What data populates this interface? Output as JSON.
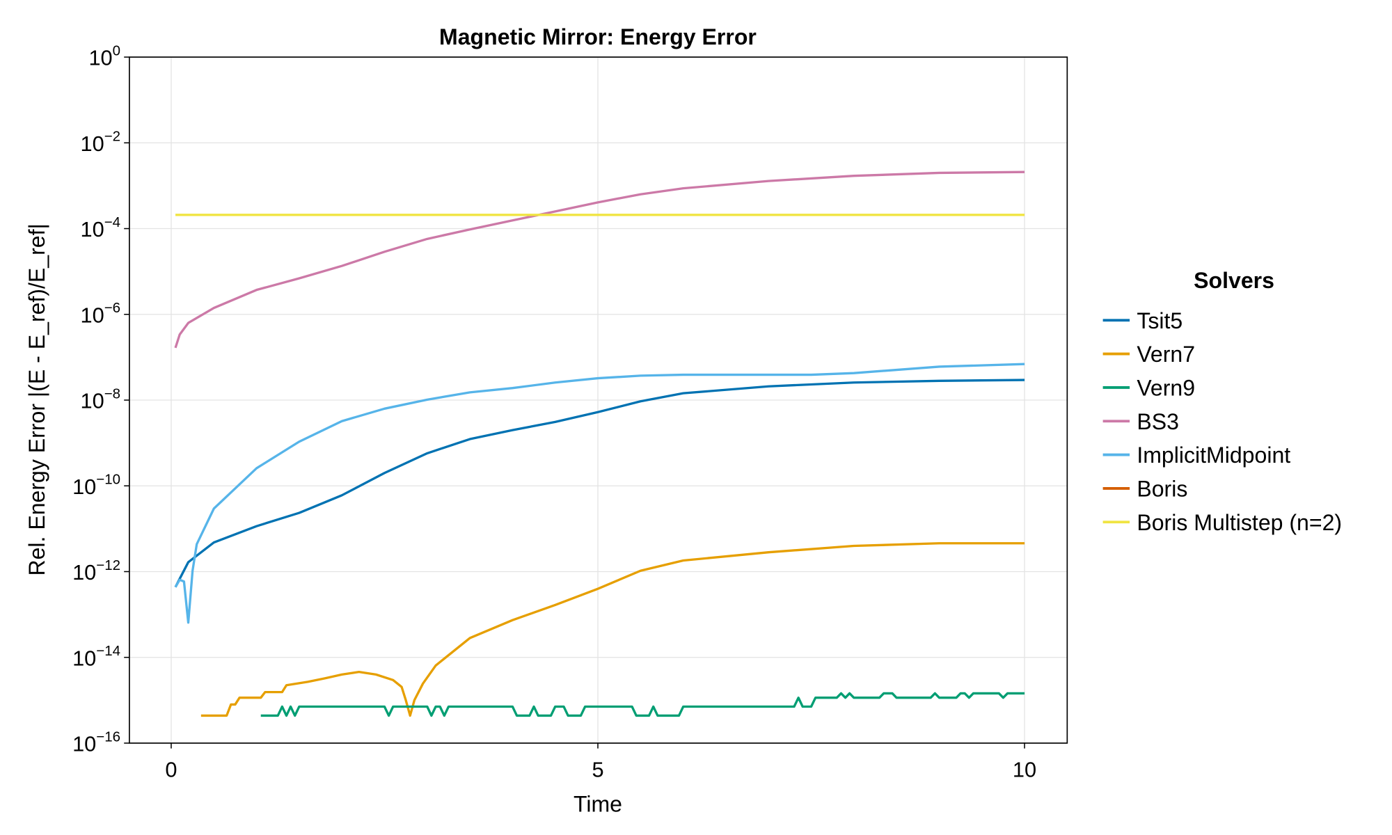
{
  "chart_data": {
    "type": "line",
    "title": "Magnetic Mirror: Energy Error",
    "xlabel": "Time",
    "ylabel": "Rel. Energy Error |(E - E_ref)/E_ref|",
    "yscale": "log10",
    "xlim": [
      -0.49,
      10.5
    ],
    "ylim_log10": [
      -16,
      0
    ],
    "xticks": [
      0,
      5,
      10
    ],
    "xtick_labels": [
      "0",
      "5",
      "10"
    ],
    "ytick_exponents": [
      0,
      -2,
      -4,
      -6,
      -8,
      -10,
      -12,
      -14,
      -16
    ],
    "ytick_base": "10",
    "grid": true,
    "legend": {
      "title": "Solvers",
      "placement": "right"
    },
    "series": [
      {
        "name": "Tsit5",
        "color": "#0072b2",
        "x": [
          0.05,
          0.2,
          0.5,
          1,
          1.5,
          2,
          2.5,
          3,
          3.5,
          4,
          4.5,
          5,
          5.5,
          6,
          7,
          8,
          9,
          10
        ],
        "log10_y": [
          -12.36,
          -11.78,
          -11.32,
          -10.94,
          -10.63,
          -10.22,
          -9.7,
          -9.24,
          -8.91,
          -8.7,
          -8.51,
          -8.28,
          -8.03,
          -7.84,
          -7.68,
          -7.59,
          -7.55,
          -7.53
        ]
      },
      {
        "name": "Vern7",
        "color": "#e69f00",
        "x": [
          0.35,
          0.65,
          0.7,
          0.75,
          0.8,
          1.05,
          1.1,
          1.3,
          1.35,
          1.6,
          1.8,
          2.0,
          2.2,
          2.4,
          2.6,
          2.7,
          2.75,
          2.8,
          2.85,
          2.95,
          3.1,
          3.5,
          4,
          4.5,
          5,
          5.5,
          6,
          7,
          8,
          9,
          10
        ],
        "log10_y": [
          -15.36,
          -15.36,
          -15.1,
          -15.1,
          -14.94,
          -14.94,
          -14.81,
          -14.81,
          -14.65,
          -14.57,
          -14.49,
          -14.4,
          -14.34,
          -14.4,
          -14.53,
          -14.69,
          -15.0,
          -15.36,
          -15.0,
          -14.61,
          -14.19,
          -13.55,
          -13.13,
          -12.78,
          -12.4,
          -11.98,
          -11.74,
          -11.55,
          -11.4,
          -11.34,
          -11.34
        ]
      },
      {
        "name": "Vern9",
        "color": "#009e73",
        "x": [
          1.05,
          1.25,
          1.3,
          1.35,
          1.4,
          1.45,
          1.5,
          2.5,
          2.55,
          2.6,
          3.0,
          3.05,
          3.1,
          3.15,
          3.2,
          3.25,
          4.0,
          4.05,
          4.2,
          4.25,
          4.3,
          4.45,
          4.5,
          4.6,
          4.65,
          4.8,
          4.85,
          5.4,
          5.45,
          5.6,
          5.65,
          5.7,
          5.95,
          6.0,
          7.3,
          7.35,
          7.4,
          7.5,
          7.55,
          7.8,
          7.85,
          7.9,
          7.95,
          8.0,
          8.3,
          8.35,
          8.45,
          8.5,
          8.9,
          8.95,
          9.0,
          9.2,
          9.25,
          9.3,
          9.35,
          9.4,
          9.7,
          9.75,
          9.8,
          10
        ],
        "log10_y": [
          -15.36,
          -15.36,
          -15.15,
          -15.36,
          -15.15,
          -15.36,
          -15.15,
          -15.15,
          -15.36,
          -15.15,
          -15.15,
          -15.36,
          -15.15,
          -15.15,
          -15.36,
          -15.15,
          -15.15,
          -15.36,
          -15.36,
          -15.15,
          -15.36,
          -15.36,
          -15.15,
          -15.15,
          -15.36,
          -15.36,
          -15.15,
          -15.15,
          -15.36,
          -15.36,
          -15.15,
          -15.36,
          -15.36,
          -15.15,
          -15.15,
          -14.94,
          -15.15,
          -15.15,
          -14.94,
          -14.94,
          -14.84,
          -14.94,
          -14.84,
          -14.94,
          -14.94,
          -14.84,
          -14.84,
          -14.94,
          -14.94,
          -14.84,
          -14.94,
          -14.94,
          -14.84,
          -14.84,
          -14.94,
          -14.84,
          -14.84,
          -14.94,
          -14.84,
          -14.84
        ]
      },
      {
        "name": "BS3",
        "color": "#cc79a7",
        "x": [
          0.05,
          0.1,
          0.2,
          0.5,
          1,
          1.5,
          2,
          2.5,
          3,
          3.5,
          4,
          4.5,
          5,
          5.5,
          6,
          7,
          8,
          9,
          10
        ],
        "log10_y": [
          -6.78,
          -6.47,
          -6.2,
          -5.85,
          -5.43,
          -5.16,
          -4.87,
          -4.54,
          -4.24,
          -4.02,
          -3.81,
          -3.6,
          -3.39,
          -3.2,
          -3.06,
          -2.89,
          -2.77,
          -2.7,
          -2.68
        ]
      },
      {
        "name": "ImplicitMidpoint",
        "color": "#56b4e9",
        "x": [
          0.05,
          0.1,
          0.15,
          0.2,
          0.25,
          0.3,
          0.5,
          1,
          1.5,
          2,
          2.5,
          3,
          3.5,
          4,
          4.5,
          5,
          5.5,
          6,
          7.5,
          8,
          9,
          10
        ],
        "log10_y": [
          -12.36,
          -12.19,
          -12.23,
          -13.19,
          -11.98,
          -11.36,
          -10.53,
          -9.59,
          -8.97,
          -8.49,
          -8.2,
          -7.99,
          -7.82,
          -7.72,
          -7.59,
          -7.49,
          -7.43,
          -7.41,
          -7.41,
          -7.37,
          -7.22,
          -7.16
        ]
      },
      {
        "name": "Boris",
        "color": "#d55e00",
        "x": [],
        "log10_y": []
      },
      {
        "name": "Boris Multistep (n=2)",
        "color": "#f0e442",
        "x": [
          0.05,
          10
        ],
        "log10_y": [
          -3.68,
          -3.68
        ]
      }
    ]
  }
}
